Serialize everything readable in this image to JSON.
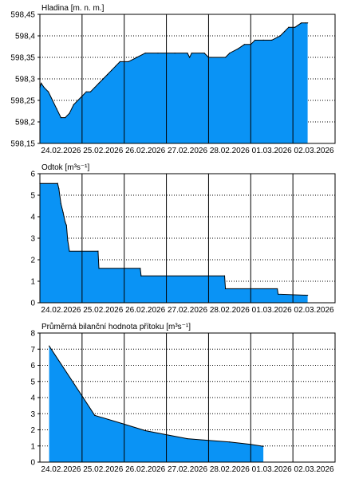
{
  "chart_data": [
    {
      "type": "area",
      "title": "Hladina [m. n. m.]",
      "ylim": [
        598.15,
        598.45
      ],
      "yticks": [
        "598,45",
        "598,4",
        "598,35",
        "598,3",
        "598,25",
        "598,2",
        "598,15"
      ],
      "ytick_values": [
        598.45,
        598.4,
        598.35,
        598.3,
        598.25,
        598.2,
        598.15
      ],
      "xlim": [
        0,
        7
      ],
      "xticks": [
        "24.02.2026",
        "25.02.2026",
        "26.02.2026",
        "27.02.2026",
        "28.02.2026",
        "01.03.2026",
        "02.03.2026"
      ],
      "x": [
        0.0,
        0.03,
        0.1,
        0.2,
        0.3,
        0.4,
        0.5,
        0.6,
        0.7,
        0.8,
        0.9,
        1.0,
        1.1,
        1.2,
        1.3,
        1.4,
        1.5,
        1.6,
        1.7,
        1.8,
        1.9,
        2.0,
        2.1,
        2.3,
        2.5,
        2.8,
        3.2,
        3.5,
        3.55,
        3.6,
        3.9,
        4.0,
        4.05,
        4.4,
        4.5,
        4.7,
        4.85,
        5.0,
        5.1,
        5.3,
        5.5,
        5.7,
        5.8,
        5.9,
        6.05,
        6.2,
        6.3,
        6.35
      ],
      "values": [
        598.28,
        598.29,
        598.28,
        598.27,
        598.25,
        598.23,
        598.21,
        598.21,
        598.22,
        598.24,
        598.25,
        598.26,
        598.27,
        598.27,
        598.28,
        598.29,
        598.3,
        598.31,
        598.32,
        598.33,
        598.34,
        598.34,
        598.34,
        598.35,
        598.36,
        598.36,
        598.36,
        598.36,
        598.35,
        598.36,
        598.36,
        598.35,
        598.35,
        598.35,
        598.36,
        598.37,
        598.38,
        598.38,
        598.39,
        598.39,
        598.39,
        598.4,
        598.41,
        598.42,
        598.42,
        598.43,
        598.43,
        598.43
      ],
      "grid": true
    },
    {
      "type": "area",
      "title": "Odtok [m³s⁻¹]",
      "ylim": [
        0,
        6
      ],
      "yticks": [
        "6",
        "5",
        "4",
        "3",
        "2",
        "1",
        "0"
      ],
      "ytick_values": [
        6,
        5,
        4,
        3,
        2,
        1,
        0
      ],
      "xlim": [
        0,
        7
      ],
      "xticks": [
        "24.02.2026",
        "25.02.2026",
        "26.02.2026",
        "27.02.2026",
        "28.02.2026",
        "01.03.2026",
        "02.03.2026"
      ],
      "x": [
        0.0,
        0.42,
        0.45,
        0.5,
        0.55,
        0.6,
        0.63,
        0.66,
        0.7,
        1.38,
        1.4,
        2.38,
        2.4,
        4.38,
        4.4,
        5.63,
        5.65,
        6.35
      ],
      "values": [
        5.55,
        5.55,
        5.3,
        4.6,
        4.2,
        3.75,
        3.6,
        2.9,
        2.4,
        2.4,
        1.6,
        1.6,
        1.25,
        1.25,
        0.65,
        0.65,
        0.4,
        0.35
      ],
      "grid": true
    },
    {
      "type": "area",
      "title": "Průměrná bilanční hodnota přítoku [m³s⁻¹]",
      "ylim": [
        0,
        8
      ],
      "yticks": [
        "8",
        "7",
        "6",
        "5",
        "4",
        "3",
        "2",
        "1",
        "0"
      ],
      "ytick_values": [
        8,
        7,
        6,
        5,
        4,
        3,
        2,
        1,
        0
      ],
      "xlim": [
        0,
        7
      ],
      "xticks": [
        "24.02.2026",
        "25.02.2026",
        "26.02.2026",
        "27.02.2026",
        "28.02.2026",
        "01.03.2026",
        "02.03.2026"
      ],
      "x": [
        0.22,
        1.0,
        1.3,
        2.0,
        2.5,
        3.0,
        3.5,
        4.0,
        4.5,
        5.0,
        5.3
      ],
      "values": [
        7.2,
        4.1,
        2.9,
        2.35,
        1.95,
        1.7,
        1.45,
        1.35,
        1.25,
        1.1,
        0.98
      ],
      "grid": true
    }
  ],
  "colors": {
    "fill": "#0a93f5",
    "line": "#000000",
    "grid": "#000000"
  }
}
